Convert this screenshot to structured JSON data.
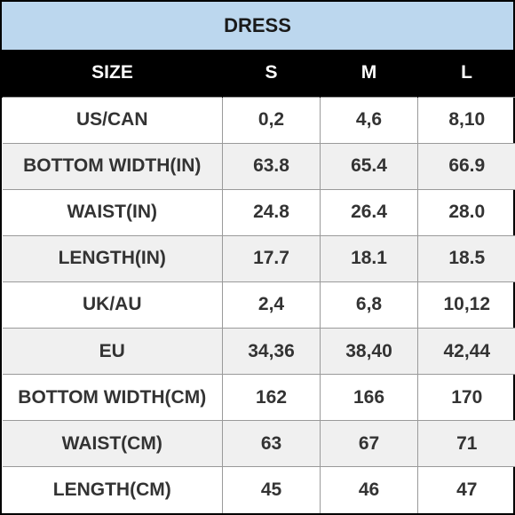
{
  "title": "DRESS",
  "header": {
    "label": "SIZE",
    "sizes": [
      "S",
      "M",
      "L"
    ]
  },
  "rows": [
    {
      "label": "US/CAN",
      "values": [
        "0,2",
        "4,6",
        "8,10"
      ]
    },
    {
      "label": "BOTTOM WIDTH(IN)",
      "values": [
        "63.8",
        "65.4",
        "66.9"
      ]
    },
    {
      "label": "WAIST(IN)",
      "values": [
        "24.8",
        "26.4",
        "28.0"
      ]
    },
    {
      "label": "LENGTH(IN)",
      "values": [
        "17.7",
        "18.1",
        "18.5"
      ]
    },
    {
      "label": "UK/AU",
      "values": [
        "2,4",
        "6,8",
        "10,12"
      ]
    },
    {
      "label": "EU",
      "values": [
        "34,36",
        "38,40",
        "42,44"
      ]
    },
    {
      "label": "BOTTOM WIDTH(CM)",
      "values": [
        "162",
        "166",
        "170"
      ]
    },
    {
      "label": "WAIST(CM)",
      "values": [
        "63",
        "67",
        "71"
      ]
    },
    {
      "label": "LENGTH(CM)",
      "values": [
        "45",
        "46",
        "47"
      ]
    }
  ],
  "colors": {
    "title_background": "#bcd7ee",
    "header_background": "#000000",
    "header_text": "#ffffff",
    "row_stripe": "#f0f0f0",
    "body_text": "#333333"
  }
}
